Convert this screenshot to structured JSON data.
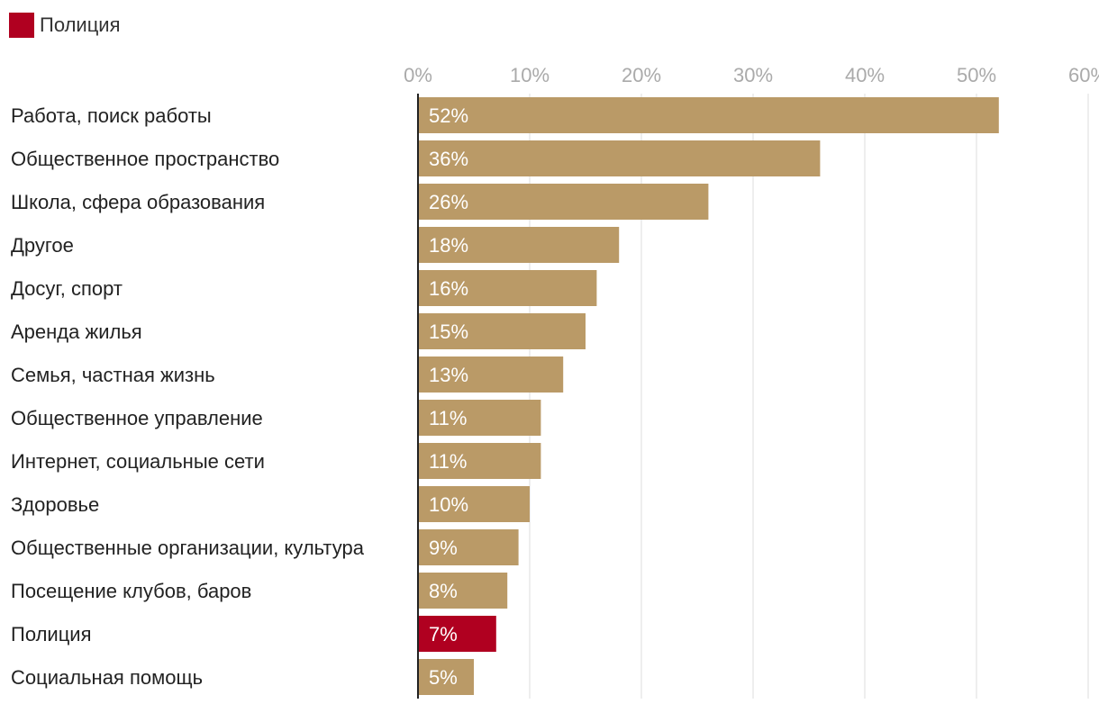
{
  "legend": {
    "label": "Полиция",
    "color": "#B00020"
  },
  "chart_data": {
    "type": "bar",
    "orientation": "horizontal",
    "categories": [
      "Работа, поиск работы",
      "Общественное пространство",
      "Школа, сфера образования",
      "Другое",
      "Досуг, спорт",
      "Аренда жилья",
      "Семья, частная жизнь",
      "Общественное управление",
      "Интернет, социальные сети",
      "Здоровье",
      "Общественные организации, культура",
      "Посещение клубов, баров",
      "Полиция",
      "Социальная помощь"
    ],
    "values": [
      52,
      36,
      26,
      18,
      16,
      15,
      13,
      11,
      11,
      10,
      9,
      8,
      7,
      5
    ],
    "value_labels": [
      "52%",
      "36%",
      "26%",
      "18%",
      "16%",
      "15%",
      "13%",
      "11%",
      "11%",
      "10%",
      "9%",
      "8%",
      "7%",
      "5%"
    ],
    "highlight_category": "Полиция",
    "xlim": [
      0,
      60
    ],
    "xticks": [
      0,
      10,
      20,
      30,
      40,
      50,
      60
    ],
    "xtick_labels": [
      "0%",
      "10%",
      "20%",
      "30%",
      "40%",
      "50%",
      "60%"
    ],
    "grid": true,
    "legend_position": "top-left",
    "colors": {
      "default_bar": "#BA9A67",
      "highlight_bar": "#B00020",
      "grid": "#DDDDDD",
      "axis": "#222222",
      "tick_label": "#AAAAAA",
      "category_label": "#222222",
      "value_label": "#FFFFFF"
    }
  }
}
